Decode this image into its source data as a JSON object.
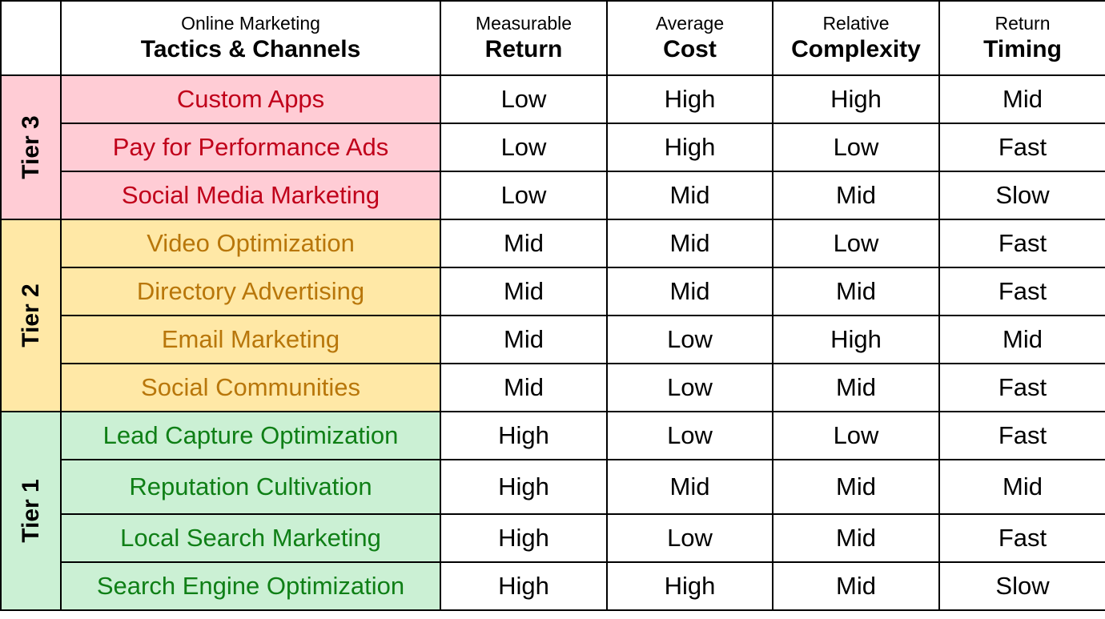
{
  "header": {
    "tactic_top": "Online Marketing",
    "tactic_bottom": "Tactics & Channels",
    "columns": [
      {
        "top": "Measurable",
        "bottom": "Return"
      },
      {
        "top": "Average",
        "bottom": "Cost"
      },
      {
        "top": "Relative",
        "bottom": "Complexity"
      },
      {
        "top": "Return",
        "bottom": "Timing"
      }
    ]
  },
  "colors": {
    "tier3_bg": "#ffccd5",
    "tier3_text": "#c0001a",
    "tier2_bg": "#ffe8a6",
    "tier2_text": "#b8760a",
    "tier1_bg": "#cbf0d4",
    "tier1_text": "#0f7f16"
  },
  "tiers": [
    {
      "label": "Tier 3",
      "rows": [
        {
          "tactic": "Custom Apps",
          "values": [
            "Low",
            "High",
            "High",
            "Mid"
          ]
        },
        {
          "tactic": "Pay for Performance Ads",
          "values": [
            "Low",
            "High",
            "Low",
            "Fast"
          ]
        },
        {
          "tactic": "Social Media Marketing",
          "values": [
            "Low",
            "Mid",
            "Mid",
            "Slow"
          ]
        }
      ]
    },
    {
      "label": "Tier 2",
      "rows": [
        {
          "tactic": "Video Optimization",
          "values": [
            "Mid",
            "Mid",
            "Low",
            "Fast"
          ]
        },
        {
          "tactic": "Directory Advertising",
          "values": [
            "Mid",
            "Mid",
            "Mid",
            "Fast"
          ]
        },
        {
          "tactic": "Email Marketing",
          "values": [
            "Mid",
            "Low",
            "High",
            "Mid"
          ]
        },
        {
          "tactic": "Social Communities",
          "values": [
            "Mid",
            "Low",
            "Mid",
            "Fast"
          ]
        }
      ]
    },
    {
      "label": "Tier 1",
      "rows": [
        {
          "tactic": "Lead Capture Optimization",
          "values": [
            "High",
            "Low",
            "Low",
            "Fast"
          ]
        },
        {
          "tactic": "Reputation Cultivation",
          "values": [
            "High",
            "Mid",
            "Mid",
            "Mid"
          ]
        },
        {
          "tactic": "Local Search Marketing",
          "values": [
            "High",
            "Low",
            "Mid",
            "Fast"
          ]
        },
        {
          "tactic": "Search Engine Optimization",
          "values": [
            "High",
            "High",
            "Mid",
            "Slow"
          ]
        }
      ]
    }
  ]
}
